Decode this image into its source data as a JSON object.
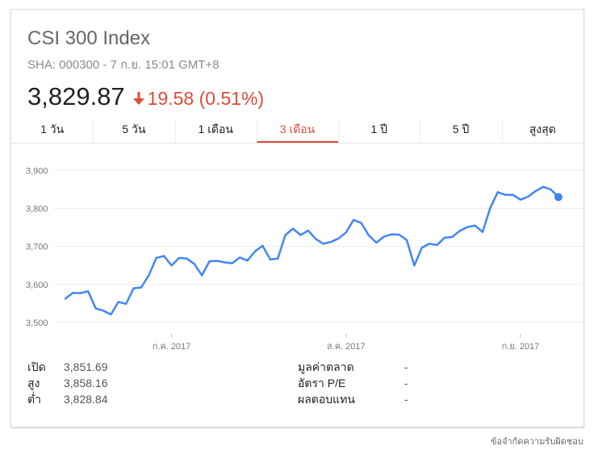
{
  "header": {
    "title": "CSI 300 Index",
    "subtitle": "SHA: 000300 - 7 ก.ย. 15:01 GMT+8",
    "price": "3,829.87",
    "change": "19.58 (0.51%)",
    "change_direction": "down",
    "change_color": "#dd4b39"
  },
  "tabs": [
    {
      "label": "1 วัน"
    },
    {
      "label": "5 วัน"
    },
    {
      "label": "1 เดือน"
    },
    {
      "label": "3 เดือน",
      "active": true
    },
    {
      "label": "1 ปี"
    },
    {
      "label": "5 ปี"
    },
    {
      "label": "สูงสุด"
    }
  ],
  "stats": {
    "left": [
      {
        "label": "เปิด",
        "value": "3,851.69"
      },
      {
        "label": "สูง",
        "value": "3,858.16"
      },
      {
        "label": "ต่ำ",
        "value": "3,828.84"
      }
    ],
    "right": [
      {
        "label": "มูลค่าตลาด",
        "value": "-"
      },
      {
        "label": "อัตรา P/E",
        "value": "-"
      },
      {
        "label": "ผลตอบแทน",
        "value": "-"
      }
    ]
  },
  "disclaimer": "ข้อจำกัดความรับผิดชอบ",
  "chart_data": {
    "type": "line",
    "line_color": "#4285f4",
    "grid": true,
    "ylim": [
      3470,
      3920
    ],
    "yticks": [
      3500,
      3600,
      3700,
      3800,
      3900
    ],
    "ytick_labels": [
      "3,500",
      "3,600",
      "3,700",
      "3,800",
      "3,900"
    ],
    "xtick_labels": [
      {
        "label": "ก.ค. 2017",
        "index": 14
      },
      {
        "label": "ส.ค. 2017",
        "index": 37
      },
      {
        "label": "ก.ย. 2017",
        "index": 60
      }
    ],
    "series": [
      {
        "values": [
          3563,
          3578,
          3577,
          3582,
          3537,
          3531,
          3521,
          3554,
          3549,
          3590,
          3592,
          3624,
          3670,
          3675,
          3650,
          3670,
          3668,
          3654,
          3624,
          3661,
          3662,
          3658,
          3656,
          3671,
          3663,
          3687,
          3702,
          3666,
          3668,
          3730,
          3747,
          3730,
          3742,
          3720,
          3707,
          3712,
          3721,
          3737,
          3770,
          3762,
          3729,
          3710,
          3726,
          3732,
          3731,
          3717,
          3650,
          3697,
          3707,
          3704,
          3723,
          3725,
          3741,
          3751,
          3755,
          3738,
          3801,
          3843,
          3836,
          3836,
          3823,
          3831,
          3846,
          3857,
          3850,
          3830
        ]
      }
    ]
  }
}
